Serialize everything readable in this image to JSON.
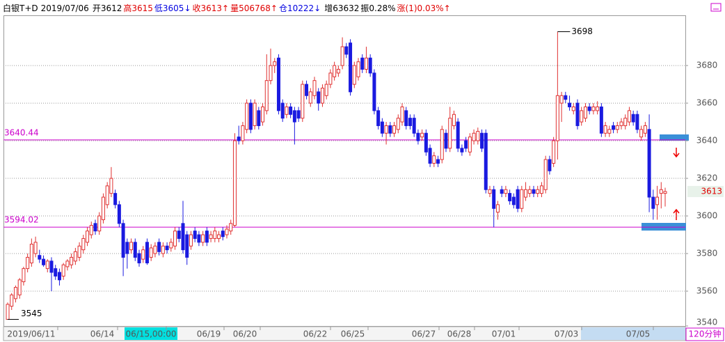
{
  "chart_data": {
    "type": "candlestick",
    "header": [
      {
        "text": "白银T+D",
        "color": "#000000"
      },
      {
        "text": "2019/07/06",
        "color": "#000000"
      },
      {
        "text": "开3612",
        "color": "#000000"
      },
      {
        "text": "高3615",
        "color": "#e00000"
      },
      {
        "text": "低3605↓",
        "color": "#0000e0"
      },
      {
        "text": "收3613↑",
        "color": "#e00000"
      },
      {
        "text": "量506768↑",
        "color": "#e00000"
      },
      {
        "text": "仓10222↓",
        "color": "#0000e0"
      },
      {
        "text": "增63632",
        "color": "#000000"
      },
      {
        "text": "振0.28%",
        "color": "#000000"
      },
      {
        "text": "涨(1)0.03%↑",
        "color": "#e00000"
      }
    ],
    "candles": [
      [
        3545,
        3554,
        3545,
        3553
      ],
      [
        3552,
        3559,
        3550,
        3558
      ],
      [
        3556,
        3563,
        3554,
        3562
      ],
      [
        3558,
        3567,
        3556,
        3566
      ],
      [
        3565,
        3573,
        3563,
        3572
      ],
      [
        3572,
        3580,
        3570,
        3578
      ],
      [
        3575,
        3588,
        3573,
        3585
      ],
      [
        3580,
        3589,
        3578,
        3586
      ],
      [
        3579,
        3582,
        3575,
        3577
      ],
      [
        3577,
        3579,
        3573,
        3574
      ],
      [
        3572,
        3577,
        3570,
        3576
      ],
      [
        3576,
        3578,
        3560,
        3570
      ],
      [
        3572,
        3574,
        3566,
        3568
      ],
      [
        3570,
        3572,
        3563,
        3566
      ],
      [
        3568,
        3575,
        3566,
        3574
      ],
      [
        3573,
        3577,
        3571,
        3576
      ],
      [
        3574,
        3580,
        3572,
        3578
      ],
      [
        3576,
        3583,
        3574,
        3581
      ],
      [
        3578,
        3586,
        3576,
        3584
      ],
      [
        3582,
        3590,
        3580,
        3588
      ],
      [
        3586,
        3594,
        3584,
        3592
      ],
      [
        3590,
        3597,
        3588,
        3595
      ],
      [
        3596,
        3598,
        3590,
        3592
      ],
      [
        3592,
        3602,
        3590,
        3600
      ],
      [
        3598,
        3612,
        3596,
        3610
      ],
      [
        3606,
        3618,
        3604,
        3616
      ],
      [
        3612,
        3626,
        3610,
        3620
      ],
      [
        3612,
        3614,
        3604,
        3606
      ],
      [
        3606,
        3608,
        3594,
        3596
      ],
      [
        3596,
        3598,
        3568,
        3578
      ],
      [
        3586,
        3588,
        3572,
        3580
      ],
      [
        3582,
        3588,
        3580,
        3586
      ],
      [
        3586,
        3588,
        3576,
        3578
      ],
      [
        3580,
        3582,
        3573,
        3575
      ],
      [
        3577,
        3584,
        3575,
        3582
      ],
      [
        3586,
        3588,
        3574,
        3575
      ],
      [
        3578,
        3585,
        3576,
        3583
      ],
      [
        3580,
        3586,
        3578,
        3584
      ],
      [
        3586,
        3588,
        3579,
        3581
      ],
      [
        3580,
        3586,
        3578,
        3584
      ],
      [
        3584,
        3586,
        3580,
        3582
      ],
      [
        3583,
        3588,
        3581,
        3586
      ],
      [
        3584,
        3594,
        3582,
        3592
      ],
      [
        3592,
        3594,
        3586,
        3588
      ],
      [
        3596,
        3608,
        3580,
        3582
      ],
      [
        3590,
        3592,
        3574,
        3578
      ],
      [
        3584,
        3592,
        3582,
        3590
      ],
      [
        3592,
        3594,
        3586,
        3588
      ],
      [
        3590,
        3592,
        3584,
        3586
      ],
      [
        3586,
        3592,
        3584,
        3590
      ],
      [
        3592,
        3594,
        3584,
        3586
      ],
      [
        3588,
        3592,
        3586,
        3590
      ],
      [
        3588,
        3594,
        3586,
        3592
      ],
      [
        3588,
        3592,
        3586,
        3590
      ],
      [
        3592,
        3594,
        3587,
        3589
      ],
      [
        3590,
        3595,
        3588,
        3593
      ],
      [
        3592,
        3598,
        3590,
        3596
      ],
      [
        3595,
        3644,
        3594,
        3640
      ],
      [
        3642,
        3648,
        3638,
        3640
      ],
      [
        3640,
        3650,
        3638,
        3648
      ],
      [
        3646,
        3662,
        3644,
        3660
      ],
      [
        3660,
        3662,
        3644,
        3646
      ],
      [
        3648,
        3662,
        3646,
        3660
      ],
      [
        3656,
        3658,
        3646,
        3648
      ],
      [
        3650,
        3660,
        3648,
        3658
      ],
      [
        3656,
        3686,
        3654,
        3672
      ],
      [
        3672,
        3689,
        3670,
        3680
      ],
      [
        3680,
        3684,
        3676,
        3682
      ],
      [
        3684,
        3686,
        3654,
        3656
      ],
      [
        3660,
        3662,
        3650,
        3652
      ],
      [
        3654,
        3660,
        3652,
        3658
      ],
      [
        3658,
        3660,
        3652,
        3654
      ],
      [
        3656,
        3658,
        3638,
        3650
      ],
      [
        3656,
        3658,
        3650,
        3652
      ],
      [
        3652,
        3672,
        3650,
        3670
      ],
      [
        3670,
        3672,
        3662,
        3664
      ],
      [
        3660,
        3668,
        3658,
        3666
      ],
      [
        3664,
        3674,
        3662,
        3672
      ],
      [
        3666,
        3668,
        3656,
        3660
      ],
      [
        3660,
        3670,
        3658,
        3668
      ],
      [
        3664,
        3672,
        3662,
        3670
      ],
      [
        3670,
        3678,
        3668,
        3676
      ],
      [
        3674,
        3682,
        3672,
        3680
      ],
      [
        3676,
        3680,
        3674,
        3678
      ],
      [
        3680,
        3695,
        3678,
        3690
      ],
      [
        3690,
        3692,
        3684,
        3686
      ],
      [
        3692,
        3694,
        3664,
        3666
      ],
      [
        3670,
        3682,
        3668,
        3680
      ],
      [
        3674,
        3684,
        3672,
        3682
      ],
      [
        3684,
        3686,
        3676,
        3678
      ],
      [
        3678,
        3690,
        3676,
        3684
      ],
      [
        3684,
        3686,
        3674,
        3676
      ],
      [
        3676,
        3678,
        3654,
        3656
      ],
      [
        3656,
        3658,
        3646,
        3648
      ],
      [
        3650,
        3652,
        3642,
        3644
      ],
      [
        3644,
        3650,
        3638,
        3648
      ],
      [
        3648,
        3650,
        3642,
        3644
      ],
      [
        3644,
        3650,
        3642,
        3648
      ],
      [
        3646,
        3654,
        3644,
        3652
      ],
      [
        3650,
        3660,
        3648,
        3658
      ],
      [
        3656,
        3658,
        3646,
        3648
      ],
      [
        3652,
        3654,
        3646,
        3648
      ],
      [
        3652,
        3654,
        3642,
        3644
      ],
      [
        3644,
        3646,
        3638,
        3640
      ],
      [
        3642,
        3646,
        3640,
        3644
      ],
      [
        3644,
        3646,
        3632,
        3634
      ],
      [
        3636,
        3638,
        3626,
        3628
      ],
      [
        3628,
        3634,
        3626,
        3632
      ],
      [
        3630,
        3632,
        3626,
        3628
      ],
      [
        3630,
        3648,
        3628,
        3646
      ],
      [
        3644,
        3646,
        3634,
        3636
      ],
      [
        3636,
        3658,
        3634,
        3652
      ],
      [
        3648,
        3656,
        3646,
        3654
      ],
      [
        3650,
        3652,
        3634,
        3636
      ],
      [
        3636,
        3638,
        3632,
        3634
      ],
      [
        3640,
        3642,
        3634,
        3636
      ],
      [
        3634,
        3644,
        3632,
        3642
      ],
      [
        3640,
        3646,
        3638,
        3644
      ],
      [
        3640,
        3647,
        3638,
        3645
      ],
      [
        3644,
        3646,
        3634,
        3636
      ],
      [
        3644,
        3646,
        3612,
        3614
      ],
      [
        3612,
        3616,
        3610,
        3614
      ],
      [
        3614,
        3616,
        3594,
        3604
      ],
      [
        3602,
        3608,
        3598,
        3606
      ],
      [
        3614,
        3616,
        3610,
        3612
      ],
      [
        3612,
        3616,
        3610,
        3614
      ],
      [
        3612,
        3614,
        3606,
        3608
      ],
      [
        3610,
        3612,
        3604,
        3606
      ],
      [
        3614,
        3616,
        3602,
        3604
      ],
      [
        3604,
        3616,
        3602,
        3614
      ],
      [
        3610,
        3618,
        3608,
        3614
      ],
      [
        3612,
        3616,
        3610,
        3614
      ],
      [
        3614,
        3616,
        3610,
        3612
      ],
      [
        3612,
        3616,
        3610,
        3614
      ],
      [
        3612,
        3618,
        3610,
        3616
      ],
      [
        3614,
        3632,
        3612,
        3630
      ],
      [
        3630,
        3632,
        3622,
        3624
      ],
      [
        3628,
        3642,
        3626,
        3640
      ],
      [
        3640,
        3698,
        3630,
        3664
      ],
      [
        3660,
        3666,
        3650,
        3664
      ],
      [
        3664,
        3666,
        3660,
        3662
      ],
      [
        3660,
        3664,
        3656,
        3658
      ],
      [
        3656,
        3660,
        3654,
        3658
      ],
      [
        3660,
        3662,
        3646,
        3648
      ],
      [
        3650,
        3658,
        3648,
        3656
      ],
      [
        3652,
        3660,
        3650,
        3658
      ],
      [
        3658,
        3660,
        3654,
        3656
      ],
      [
        3656,
        3660,
        3654,
        3658
      ],
      [
        3656,
        3661,
        3654,
        3658
      ],
      [
        3658,
        3660,
        3642,
        3644
      ],
      [
        3644,
        3650,
        3642,
        3648
      ],
      [
        3644,
        3648,
        3642,
        3646
      ],
      [
        3648,
        3650,
        3644,
        3646
      ],
      [
        3646,
        3650,
        3644,
        3648
      ],
      [
        3648,
        3652,
        3646,
        3650
      ],
      [
        3648,
        3654,
        3646,
        3652
      ],
      [
        3650,
        3658,
        3648,
        3656
      ],
      [
        3654,
        3656,
        3648,
        3650
      ],
      [
        3654,
        3656,
        3644,
        3646
      ],
      [
        3642,
        3648,
        3640,
        3646
      ],
      [
        3644,
        3650,
        3642,
        3648
      ],
      [
        3646,
        3654,
        3602,
        3610
      ],
      [
        3610,
        3614,
        3598,
        3604
      ],
      [
        3606,
        3616,
        3598,
        3610
      ],
      [
        3612,
        3618,
        3604,
        3614
      ],
      [
        3612,
        3615,
        3605,
        3613
      ]
    ],
    "up_color": "#e03030",
    "down_color": "#1a1ae0",
    "x_labels": [
      "2019/06/11",
      "06/14",
      "06/15,00:00",
      "06/19",
      "06/20",
      "06/22",
      "06/25",
      "06/27",
      "06/28",
      "07/01",
      "07/03",
      "07/05"
    ],
    "ylim": [
      3540,
      3706.7
    ],
    "yticks": [
      3540,
      3560,
      3580,
      3600,
      3620,
      3640,
      3660,
      3680
    ],
    "grid": true,
    "ref_lines": [
      3640.44,
      3594.02
    ],
    "ref_color": "#cc00cc",
    "high_label": 3698,
    "low_label": 3545,
    "last_price": 3613,
    "period": "120分钟"
  }
}
